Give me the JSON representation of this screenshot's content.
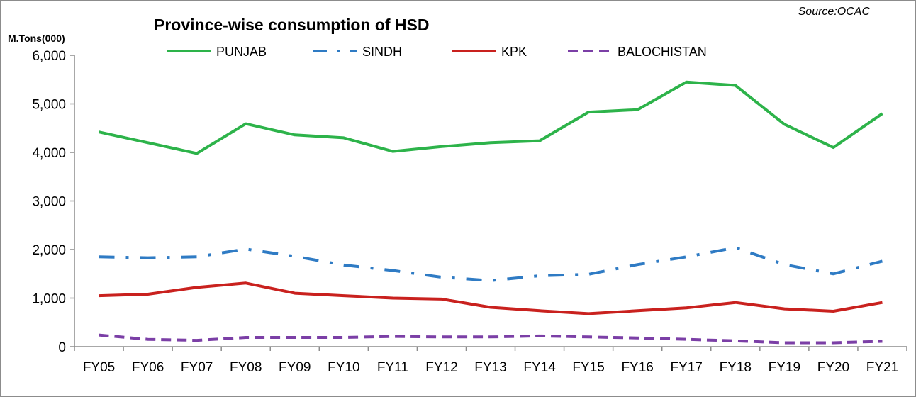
{
  "chart_data": {
    "type": "line",
    "title": "Province-wise consumption of HSD",
    "source": "Source:OCAC",
    "ylabel": "M.Tons(000)",
    "xlabel": "",
    "ylim": [
      0,
      6000
    ],
    "yticks": [
      0,
      1000,
      2000,
      3000,
      4000,
      5000,
      6000
    ],
    "ytick_labels": [
      "0",
      "1,000",
      "2,000",
      "3,000",
      "4,000",
      "5,000",
      "6,000"
    ],
    "grid": false,
    "legend_position": "top",
    "categories": [
      "FY05",
      "FY06",
      "FY07",
      "FY08",
      "FY09",
      "FY10",
      "FY11",
      "FY12",
      "FY13",
      "FY14",
      "FY15",
      "FY16",
      "FY17",
      "FY18",
      "FY19",
      "FY20",
      "FY21"
    ],
    "series": [
      {
        "name": "PUNJAB",
        "color": "#2db34a",
        "dash": "solid",
        "values": [
          4420,
          4200,
          3980,
          4590,
          4360,
          4300,
          4020,
          4120,
          4200,
          4240,
          4830,
          4880,
          5450,
          5380,
          4580,
          4100,
          4800
        ]
      },
      {
        "name": "SINDH",
        "color": "#2f7bc4",
        "dash": "dashdot",
        "values": [
          1850,
          1830,
          1850,
          2010,
          1860,
          1680,
          1570,
          1430,
          1360,
          1460,
          1490,
          1690,
          1850,
          2040,
          1690,
          1500,
          1760
        ]
      },
      {
        "name": "KPK",
        "color": "#c9211e",
        "dash": "solid",
        "values": [
          1050,
          1080,
          1220,
          1310,
          1100,
          1050,
          1000,
          980,
          810,
          740,
          680,
          740,
          800,
          910,
          780,
          730,
          910
        ]
      },
      {
        "name": "BALOCHISTAN",
        "color": "#7b3fa6",
        "dash": "dash",
        "values": [
          240,
          150,
          130,
          190,
          190,
          190,
          210,
          200,
          200,
          220,
          200,
          180,
          150,
          120,
          80,
          80,
          110
        ]
      }
    ]
  }
}
